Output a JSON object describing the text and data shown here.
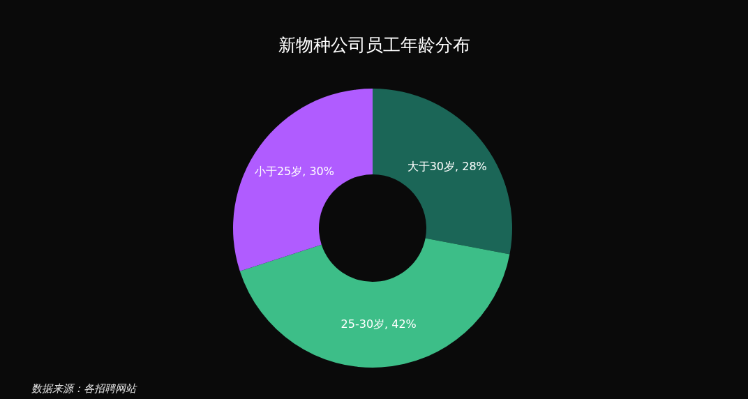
{
  "chart_data": {
    "type": "donut",
    "title": "新物种公司员工年龄分布",
    "categories": [
      "大于30岁",
      "25-30岁",
      "小于25岁"
    ],
    "values": [
      28,
      42,
      30
    ],
    "colors": [
      "#1b6657",
      "#3dbe88",
      "#b05cff"
    ],
    "value_labels": [
      "28%",
      "42%",
      "30%"
    ],
    "annotations": [
      "数据来源：各招聘网站"
    ]
  }
}
